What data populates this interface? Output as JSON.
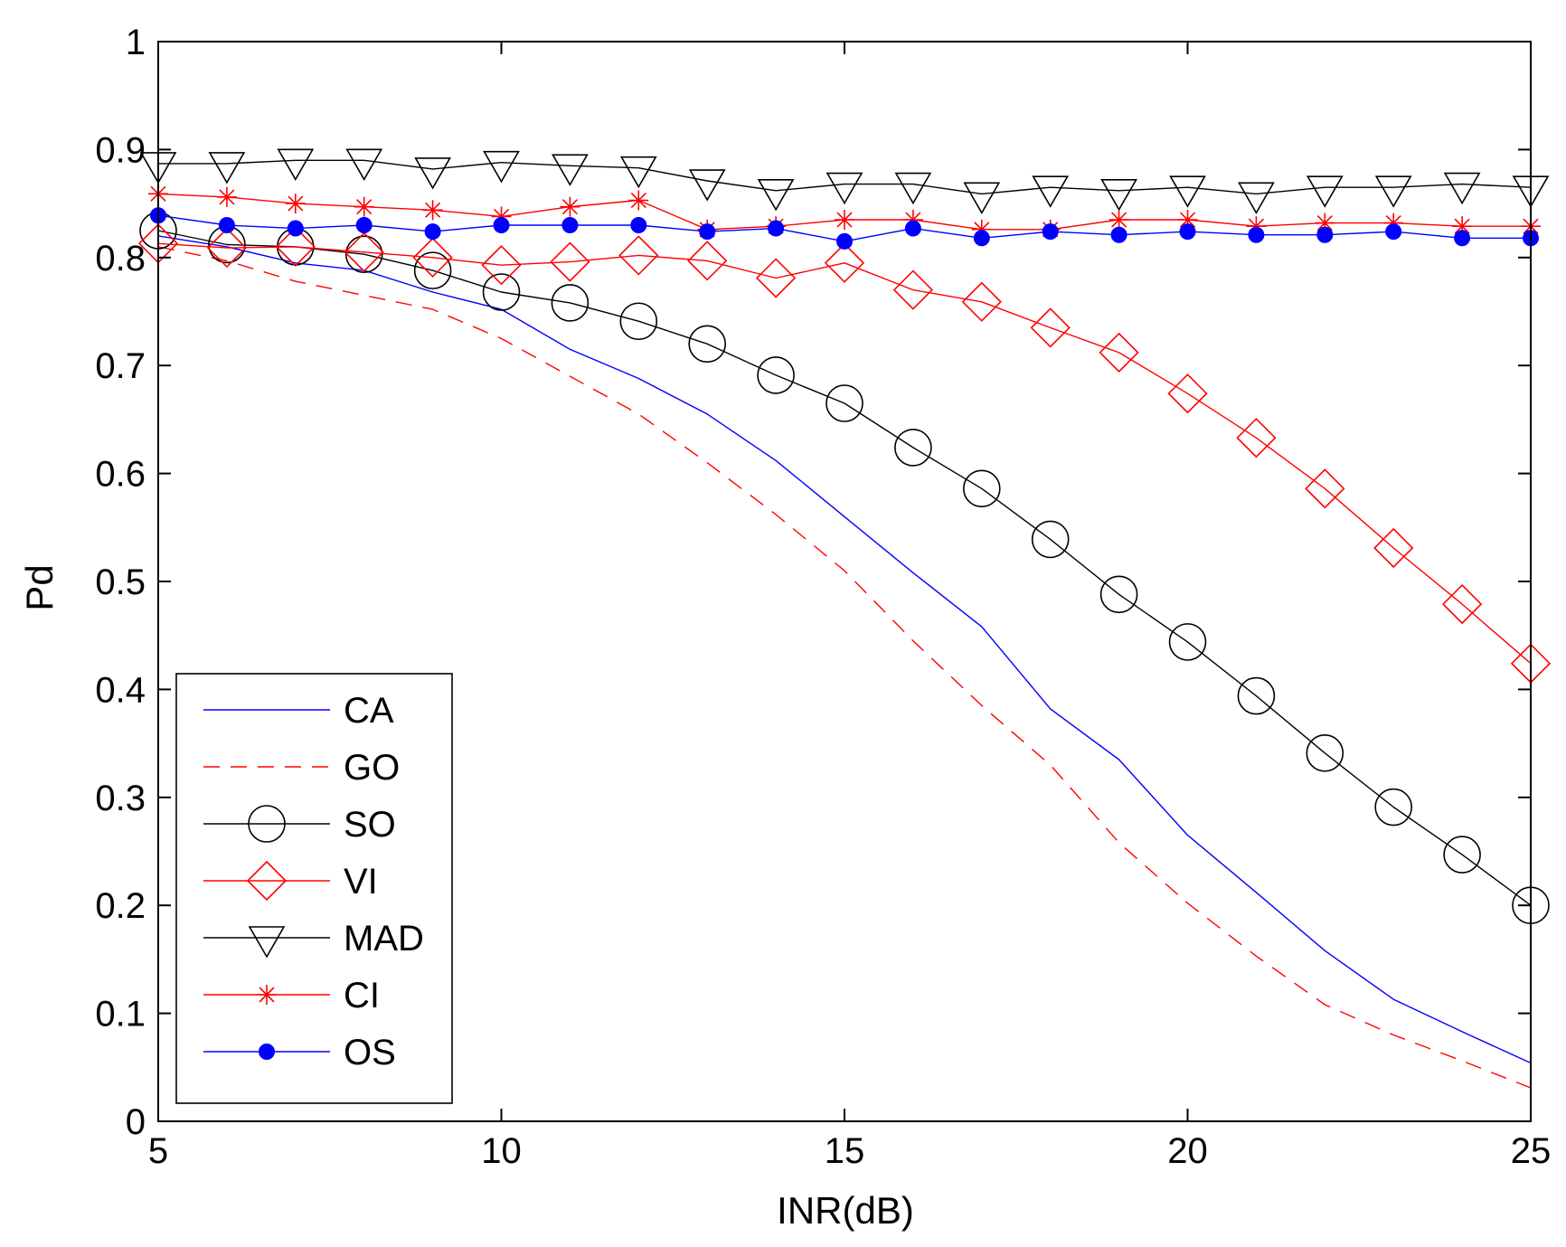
{
  "chart_data": {
    "type": "line",
    "title": "",
    "xlabel": "INR(dB)",
    "ylabel": "Pd",
    "xlim": [
      5,
      25
    ],
    "ylim": [
      0,
      1
    ],
    "grid": false,
    "legend_position": "bottom-left",
    "x_ticks": [
      5,
      10,
      15,
      20,
      25
    ],
    "y_ticks": [
      0,
      0.1,
      0.2,
      0.3,
      0.4,
      0.5,
      0.6,
      0.7,
      0.8,
      0.9,
      1
    ],
    "x_tick_labels": [
      "5",
      "10",
      "15",
      "20",
      "25"
    ],
    "y_tick_labels": [
      "0",
      "0.1",
      "0.2",
      "0.3",
      "0.4",
      "0.5",
      "0.6",
      "0.7",
      "0.8",
      "0.9",
      "1"
    ],
    "x": [
      5,
      6,
      7,
      8,
      9,
      10,
      11,
      12,
      13,
      14,
      15,
      16,
      17,
      18,
      19,
      20,
      21,
      22,
      23,
      24,
      25
    ],
    "series": [
      {
        "name": "CA",
        "color": "#0000ff",
        "dash": "solid",
        "marker": "none",
        "values": [
          0.82,
          0.81,
          0.795,
          0.788,
          0.768,
          0.752,
          0.715,
          0.688,
          0.655,
          0.612,
          0.56,
          0.508,
          0.458,
          0.382,
          0.335,
          0.265,
          0.212,
          0.158,
          0.113,
          0.083,
          0.054
        ]
      },
      {
        "name": "GO",
        "color": "#ff0000",
        "dash": "dashed",
        "marker": "none",
        "values": [
          0.81,
          0.797,
          0.778,
          0.765,
          0.752,
          0.725,
          0.69,
          0.655,
          0.61,
          0.562,
          0.51,
          0.445,
          0.385,
          0.33,
          0.258,
          0.202,
          0.153,
          0.108,
          0.08,
          0.056,
          0.031
        ]
      },
      {
        "name": "SO",
        "color": "#000000",
        "dash": "solid",
        "marker": "circle",
        "values": [
          0.825,
          0.812,
          0.81,
          0.803,
          0.788,
          0.768,
          0.758,
          0.741,
          0.72,
          0.691,
          0.665,
          0.624,
          0.586,
          0.539,
          0.488,
          0.444,
          0.394,
          0.341,
          0.291,
          0.247,
          0.2
        ]
      },
      {
        "name": "VI",
        "color": "#ff0000",
        "dash": "solid",
        "marker": "diamond",
        "values": [
          0.813,
          0.809,
          0.81,
          0.805,
          0.8,
          0.793,
          0.796,
          0.802,
          0.797,
          0.781,
          0.795,
          0.77,
          0.759,
          0.735,
          0.712,
          0.674,
          0.633,
          0.586,
          0.531,
          0.479,
          0.424
        ]
      },
      {
        "name": "MAD",
        "color": "#000000",
        "dash": "solid",
        "marker": "triangle-down",
        "values": [
          0.887,
          0.887,
          0.89,
          0.89,
          0.882,
          0.888,
          0.885,
          0.883,
          0.871,
          0.862,
          0.868,
          0.868,
          0.859,
          0.865,
          0.862,
          0.865,
          0.859,
          0.865,
          0.865,
          0.868,
          0.865
        ]
      },
      {
        "name": "CI",
        "color": "#ff0000",
        "dash": "solid",
        "marker": "asterisk",
        "values": [
          0.859,
          0.856,
          0.85,
          0.847,
          0.844,
          0.838,
          0.847,
          0.853,
          0.826,
          0.829,
          0.835,
          0.835,
          0.826,
          0.826,
          0.835,
          0.835,
          0.829,
          0.832,
          0.832,
          0.829,
          0.829
        ]
      },
      {
        "name": "OS",
        "color": "#0000ff",
        "dash": "solid",
        "marker": "filled-circle",
        "values": [
          0.839,
          0.83,
          0.827,
          0.83,
          0.824,
          0.83,
          0.83,
          0.83,
          0.824,
          0.827,
          0.815,
          0.827,
          0.818,
          0.824,
          0.821,
          0.824,
          0.821,
          0.821,
          0.824,
          0.818,
          0.818
        ]
      }
    ]
  }
}
